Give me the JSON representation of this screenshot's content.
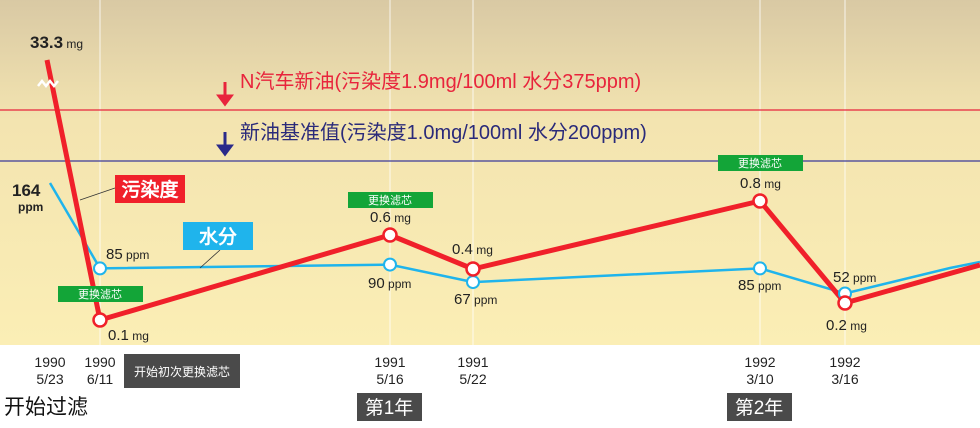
{
  "chart_data": {
    "type": "line",
    "title": "",
    "categories": [
      "1990 5/23",
      "1990 6/11",
      "1991 5/16",
      "1991 5/22",
      "1992 3/10",
      "1992 3/16"
    ],
    "x_labels": [
      {
        "year": "1990",
        "date": "5/23"
      },
      {
        "year": "1990",
        "date": "6/11"
      },
      {
        "year": "1991",
        "date": "5/16"
      },
      {
        "year": "1991",
        "date": "5/22"
      },
      {
        "year": "1992",
        "date": "3/10"
      },
      {
        "year": "1992",
        "date": "3/16"
      }
    ],
    "series": [
      {
        "name": "污染度",
        "unit": "mg",
        "color": "#f0202a",
        "values": [
          33.3,
          0.1,
          0.6,
          0.4,
          0.8,
          0.2
        ],
        "labels": [
          "33.3",
          "0.1",
          "0.6",
          "0.4",
          "0.8",
          "0.2"
        ],
        "axis_break_after_first": true
      },
      {
        "name": "水分",
        "unit": "ppm",
        "color": "#1fb4ec",
        "values": [
          164,
          85,
          90,
          67,
          85,
          52
        ],
        "labels": [
          "164",
          "85",
          "90",
          "67",
          "85",
          "52"
        ]
      }
    ],
    "reference_lines": [
      {
        "label": "N汽车新油(污染度1.9mg/100ml  水分375ppm)",
        "color": "#e8243c"
      },
      {
        "label": "新油基准值(污染度1.0mg/100ml  水分200ppm)",
        "color": "#3a3a9a"
      }
    ],
    "annotations": {
      "filter_change": "更换滤芯",
      "first_filter_change": "开始初次更换滤芯",
      "start_filtering": "开始过滤",
      "year1": "第1年",
      "year2": "第2年"
    },
    "filter_change_color": "#13a538",
    "grid": false,
    "legend": "inline"
  }
}
